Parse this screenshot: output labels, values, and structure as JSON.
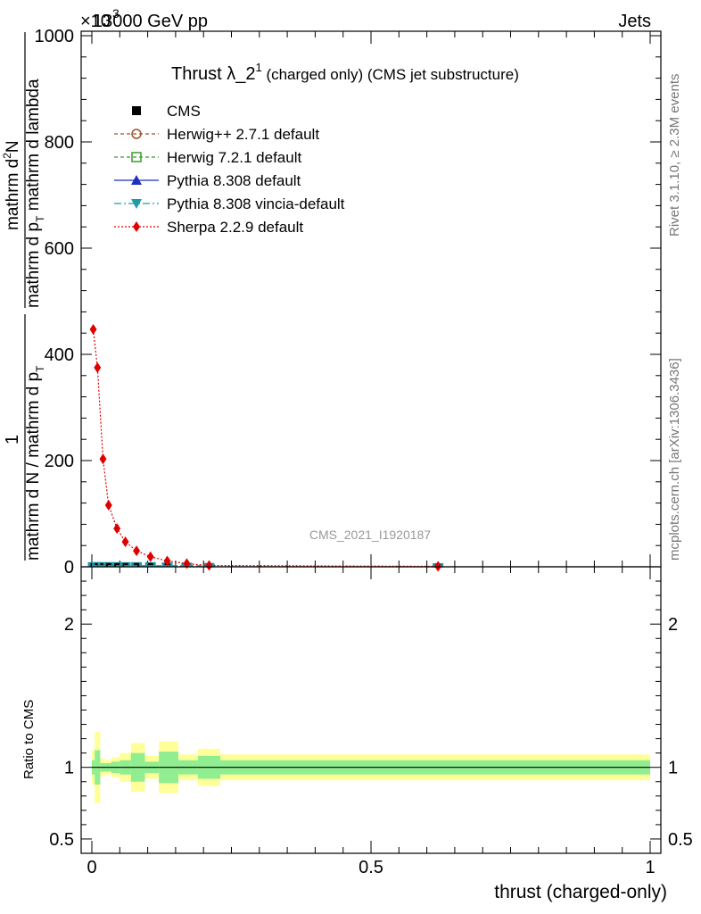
{
  "header": {
    "process": "13000 GeV pp",
    "process_overlap": "×10",
    "exponent": "3",
    "tag": "Jets"
  },
  "side_labels": {
    "rivet": "Rivet 3.1.10, ≥ 2.3M events",
    "mcplots": "mcplots.cern.ch [arXiv:1306.3436]"
  },
  "chart_data": [
    {
      "type": "line",
      "title_main": "Thrust λ_2",
      "title_sup": "1",
      "title_rest": " (charged only) (CMS jet substructure)",
      "watermark": "CMS_2021_I1920187",
      "ylabel_numerator": "1",
      "ylabel_denominator": "mathrm d N / mathrm d p",
      "ylabel_denominator_sub": "T",
      "ylabel_right_main": "mathrm d",
      "ylabel_right_sup": "2",
      "ylabel_right_rest": "N",
      "ylabel_right_den": "mathrm d p",
      "ylabel_right_den_sub": "T",
      "ylabel_right_den_rest": " mathrm d lambda",
      "xlim": [
        0,
        1
      ],
      "ylim": [
        0,
        1000000
      ],
      "y_ticks": [
        0,
        200000,
        400000,
        600000,
        800000,
        1000000
      ],
      "y_tick_labels": [
        "0",
        "200",
        "400",
        "600",
        "800",
        "1000"
      ],
      "legend_position": "top-left",
      "legend": [
        {
          "name": "CMS",
          "color": "#000000",
          "marker": "square"
        },
        {
          "name": "Herwig++ 2.7.1 default",
          "color": "#a0522d",
          "marker": "circle-open"
        },
        {
          "name": "Herwig 7.2.1 default",
          "color": "#3c9a2c",
          "marker": "square-open"
        },
        {
          "name": "Pythia 8.308 default",
          "color": "#1f2fbf",
          "marker": "triangle"
        },
        {
          "name": "Pythia 8.308 vincia-default",
          "color": "#1e9aaa",
          "marker": "triangle-down"
        },
        {
          "name": "Sherpa 2.2.9 default",
          "color": "#e00000",
          "marker": "diamond"
        }
      ],
      "series": [
        {
          "name": "Sherpa 2.2.9 default",
          "x": [
            0.0025,
            0.01,
            0.02,
            0.03,
            0.045,
            0.06,
            0.08,
            0.105,
            0.135,
            0.17,
            0.21,
            0.62
          ],
          "y": [
            447000,
            375000,
            203000,
            116000,
            72000,
            47000,
            30000,
            19000,
            11000,
            6000,
            2500,
            800
          ]
        },
        {
          "name": "CMS",
          "x": [
            0.0025,
            0.01,
            0.02,
            0.03,
            0.045,
            0.06,
            0.08,
            0.105,
            0.135,
            0.17,
            0.21,
            0.62
          ],
          "y": [
            2000,
            2000,
            2000,
            2000,
            2000,
            2000,
            2000,
            2000,
            1500,
            1000,
            500,
            100
          ]
        }
      ]
    },
    {
      "type": "area",
      "ylabel": "Ratio to CMS",
      "xlabel": "thrust (charged-only)",
      "xlim": [
        0,
        1
      ],
      "ylim": [
        0.4,
        2.4
      ],
      "y_ticks": [
        0.5,
        1,
        2
      ],
      "y_tick_labels": [
        "0.5",
        "1",
        "2"
      ],
      "x_ticks": [
        0,
        0.5,
        1
      ],
      "x_tick_labels": [
        "0",
        "0.5",
        "1"
      ],
      "reference": 1,
      "bins": [
        {
          "lo": 0.0,
          "hi": 0.005,
          "stat": 0.05,
          "tot": 0.12
        },
        {
          "lo": 0.005,
          "hi": 0.015,
          "stat": 0.12,
          "tot": 0.25
        },
        {
          "lo": 0.015,
          "hi": 0.025,
          "stat": 0.03,
          "tot": 0.06
        },
        {
          "lo": 0.025,
          "hi": 0.035,
          "stat": 0.03,
          "tot": 0.05
        },
        {
          "lo": 0.035,
          "hi": 0.05,
          "stat": 0.04,
          "tot": 0.07
        },
        {
          "lo": 0.05,
          "hi": 0.07,
          "stat": 0.05,
          "tot": 0.1
        },
        {
          "lo": 0.07,
          "hi": 0.095,
          "stat": 0.1,
          "tot": 0.17
        },
        {
          "lo": 0.095,
          "hi": 0.12,
          "stat": 0.04,
          "tot": 0.08
        },
        {
          "lo": 0.12,
          "hi": 0.155,
          "stat": 0.11,
          "tot": 0.18
        },
        {
          "lo": 0.155,
          "hi": 0.19,
          "stat": 0.05,
          "tot": 0.09
        },
        {
          "lo": 0.19,
          "hi": 0.23,
          "stat": 0.08,
          "tot": 0.13
        },
        {
          "lo": 0.23,
          "hi": 1.0,
          "stat": 0.05,
          "tot": 0.09
        }
      ]
    }
  ]
}
